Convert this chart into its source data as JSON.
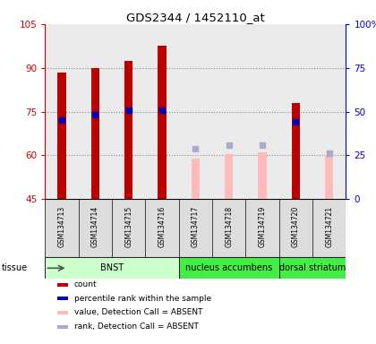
{
  "title": "GDS2344 / 1452110_at",
  "samples": [
    "GSM134713",
    "GSM134714",
    "GSM134715",
    "GSM134716",
    "GSM134717",
    "GSM134718",
    "GSM134719",
    "GSM134720",
    "GSM134721"
  ],
  "bar_values": [
    88.5,
    90.0,
    92.5,
    97.5,
    null,
    null,
    null,
    78.0,
    null
  ],
  "bar_absent": [
    null,
    null,
    null,
    null,
    59.0,
    60.5,
    61.0,
    null,
    60.0
  ],
  "rank_pct": [
    45.0,
    48.0,
    51.0,
    51.0,
    null,
    null,
    null,
    44.0,
    null
  ],
  "rank_pct_abs": [
    null,
    null,
    null,
    null,
    29.0,
    31.0,
    31.0,
    null,
    26.0
  ],
  "ylim": [
    45,
    105
  ],
  "y2lim": [
    0,
    100
  ],
  "yticks": [
    45,
    60,
    75,
    90,
    105
  ],
  "ytick_labels": [
    "45",
    "60",
    "75",
    "90",
    "105"
  ],
  "y2ticks": [
    0,
    25,
    50,
    75,
    100
  ],
  "y2tick_labels": [
    "0",
    "25",
    "50",
    "75",
    "100%"
  ],
  "bar_color": "#BB0000",
  "bar_absent_color": "#FFBBBB",
  "rank_color": "#0000BB",
  "rank_absent_color": "#AAAACC",
  "tissue_groups": [
    {
      "label": "BNST",
      "start": 0,
      "end": 3,
      "color": "#CCFFCC"
    },
    {
      "label": "nucleus accumbens",
      "start": 4,
      "end": 6,
      "color": "#44EE44"
    },
    {
      "label": "dorsal striatum",
      "start": 7,
      "end": 8,
      "color": "#44EE44"
    }
  ],
  "bar_width": 0.25,
  "sample_bg": "#C8C8C8",
  "legend_items": [
    {
      "color": "#BB0000",
      "label": "count"
    },
    {
      "color": "#0000BB",
      "label": "percentile rank within the sample"
    },
    {
      "color": "#FFBBBB",
      "label": "value, Detection Call = ABSENT"
    },
    {
      "color": "#AAAACC",
      "label": "rank, Detection Call = ABSENT"
    }
  ]
}
